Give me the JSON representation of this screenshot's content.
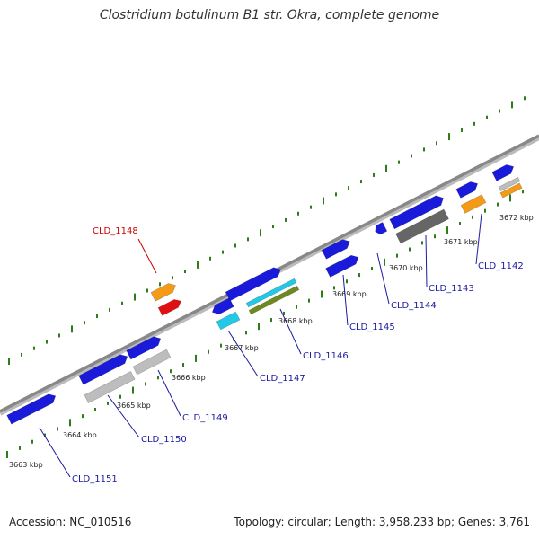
{
  "title": "Clostridium botulinum B1 str. Okra, complete genome",
  "footer": {
    "accession": "Accession: NC_010516",
    "summary": "Topology: circular; Length: 3,958,233 bp; Genes: 3,761"
  },
  "colors": {
    "backbone": "#888888",
    "tick": "#2e7d1a",
    "cds_forward": "#1a1adb",
    "cds_reverse": "#1a1adb",
    "grey_feature": "#bdbdbd",
    "dark_grey_feature": "#666666",
    "orange_feature": "#f59a16",
    "red_feature": "#e01010",
    "cyan_feature": "#22c8e6",
    "olive_feature": "#6e8a1e",
    "label_default": "#1a1aa0",
    "label_highlight": "#cc0000"
  },
  "kbp_labels": [
    "3663 kbp",
    "3664 kbp",
    "3665 kbp",
    "3666 kbp",
    "3667 kbp",
    "3668 kbp",
    "3669 kbp",
    "3670 kbp",
    "3671 kbp",
    "3672 kbp"
  ],
  "genes": [
    {
      "name": "CLD_1151",
      "color": "label_default"
    },
    {
      "name": "CLD_1150",
      "color": "label_default"
    },
    {
      "name": "CLD_1149",
      "color": "label_default"
    },
    {
      "name": "CLD_1148",
      "color": "label_highlight"
    },
    {
      "name": "CLD_1147",
      "color": "label_default"
    },
    {
      "name": "CLD_1146",
      "color": "label_default"
    },
    {
      "name": "CLD_1145",
      "color": "label_default"
    },
    {
      "name": "CLD_1144",
      "color": "label_default"
    },
    {
      "name": "CLD_1143",
      "color": "label_default"
    },
    {
      "name": "CLD_1142",
      "color": "label_default"
    }
  ]
}
